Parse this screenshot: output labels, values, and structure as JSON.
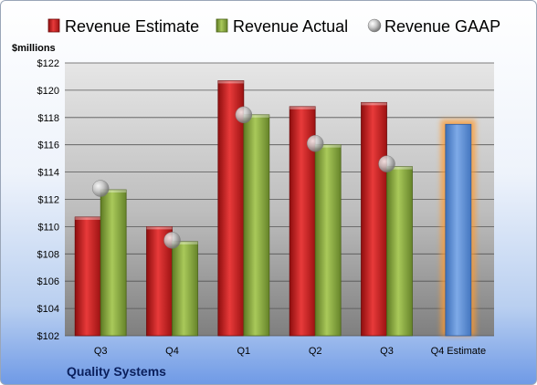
{
  "company": "Quality Systems",
  "chart_data": {
    "type": "bar",
    "ylabel": "$millions",
    "ylim": [
      102,
      122
    ],
    "ytick_step": 2,
    "ytick_prefix": "$",
    "categories": [
      "Q3",
      "Q4",
      "Q1",
      "Q2",
      "Q3",
      "Q4 Estimate"
    ],
    "series": [
      {
        "name": "Revenue Estimate",
        "kind": "bar",
        "color": "#d21f1f",
        "values": [
          110.7,
          110.0,
          120.7,
          118.8,
          119.1,
          null
        ]
      },
      {
        "name": "Revenue Actual",
        "kind": "bar",
        "color": "#8fb040",
        "values": [
          112.7,
          108.9,
          118.2,
          116.0,
          114.4,
          null
        ]
      },
      {
        "name": "Revenue GAAP",
        "kind": "marker",
        "color": "#b8b8b8",
        "values": [
          112.8,
          109.0,
          118.2,
          116.1,
          114.6,
          null
        ]
      },
      {
        "name": "",
        "kind": "highlight-bar",
        "color": "#5b8fd8",
        "values": [
          null,
          null,
          null,
          null,
          null,
          117.5
        ]
      }
    ],
    "legend": "top",
    "grid": true
  }
}
